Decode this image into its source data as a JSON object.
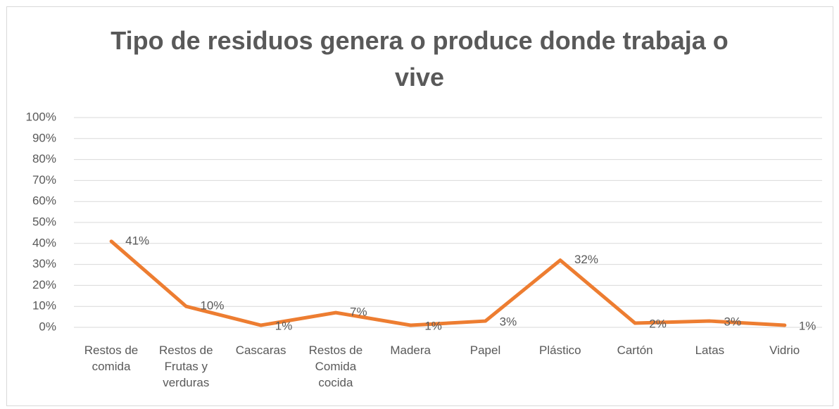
{
  "chart_data": {
    "type": "line",
    "title": "Tipo de residuos genera o produce donde trabaja o vive",
    "categories": [
      "Restos de comida",
      "Restos de Frutas y verduras",
      "Cascaras",
      "Restos de Comida cocida",
      "Madera",
      "Papel",
      "Plástico",
      "Cartón",
      "Latas",
      "Vidrio"
    ],
    "series": [
      {
        "name": "Tipo de residuos",
        "color": "#ed7d31",
        "values": [
          41,
          10,
          1,
          7,
          1,
          3,
          32,
          2,
          3,
          1
        ],
        "value_labels": [
          "41%",
          "10%",
          "1%",
          "7%",
          "1%",
          "3%",
          "32%",
          "2%",
          "3%",
          "1%"
        ]
      }
    ],
    "ylim": [
      0,
      100
    ],
    "yticks": [
      {
        "value": 0,
        "label": "0%"
      },
      {
        "value": 10,
        "label": "10%"
      },
      {
        "value": 20,
        "label": "20%"
      },
      {
        "value": 30,
        "label": "30%"
      },
      {
        "value": 40,
        "label": "40%"
      },
      {
        "value": 50,
        "label": "50%"
      },
      {
        "value": 60,
        "label": "60%"
      },
      {
        "value": 70,
        "label": "70%"
      },
      {
        "value": 80,
        "label": "80%"
      },
      {
        "value": 90,
        "label": "90%"
      },
      {
        "value": 100,
        "label": "100%"
      }
    ],
    "grid": true
  }
}
